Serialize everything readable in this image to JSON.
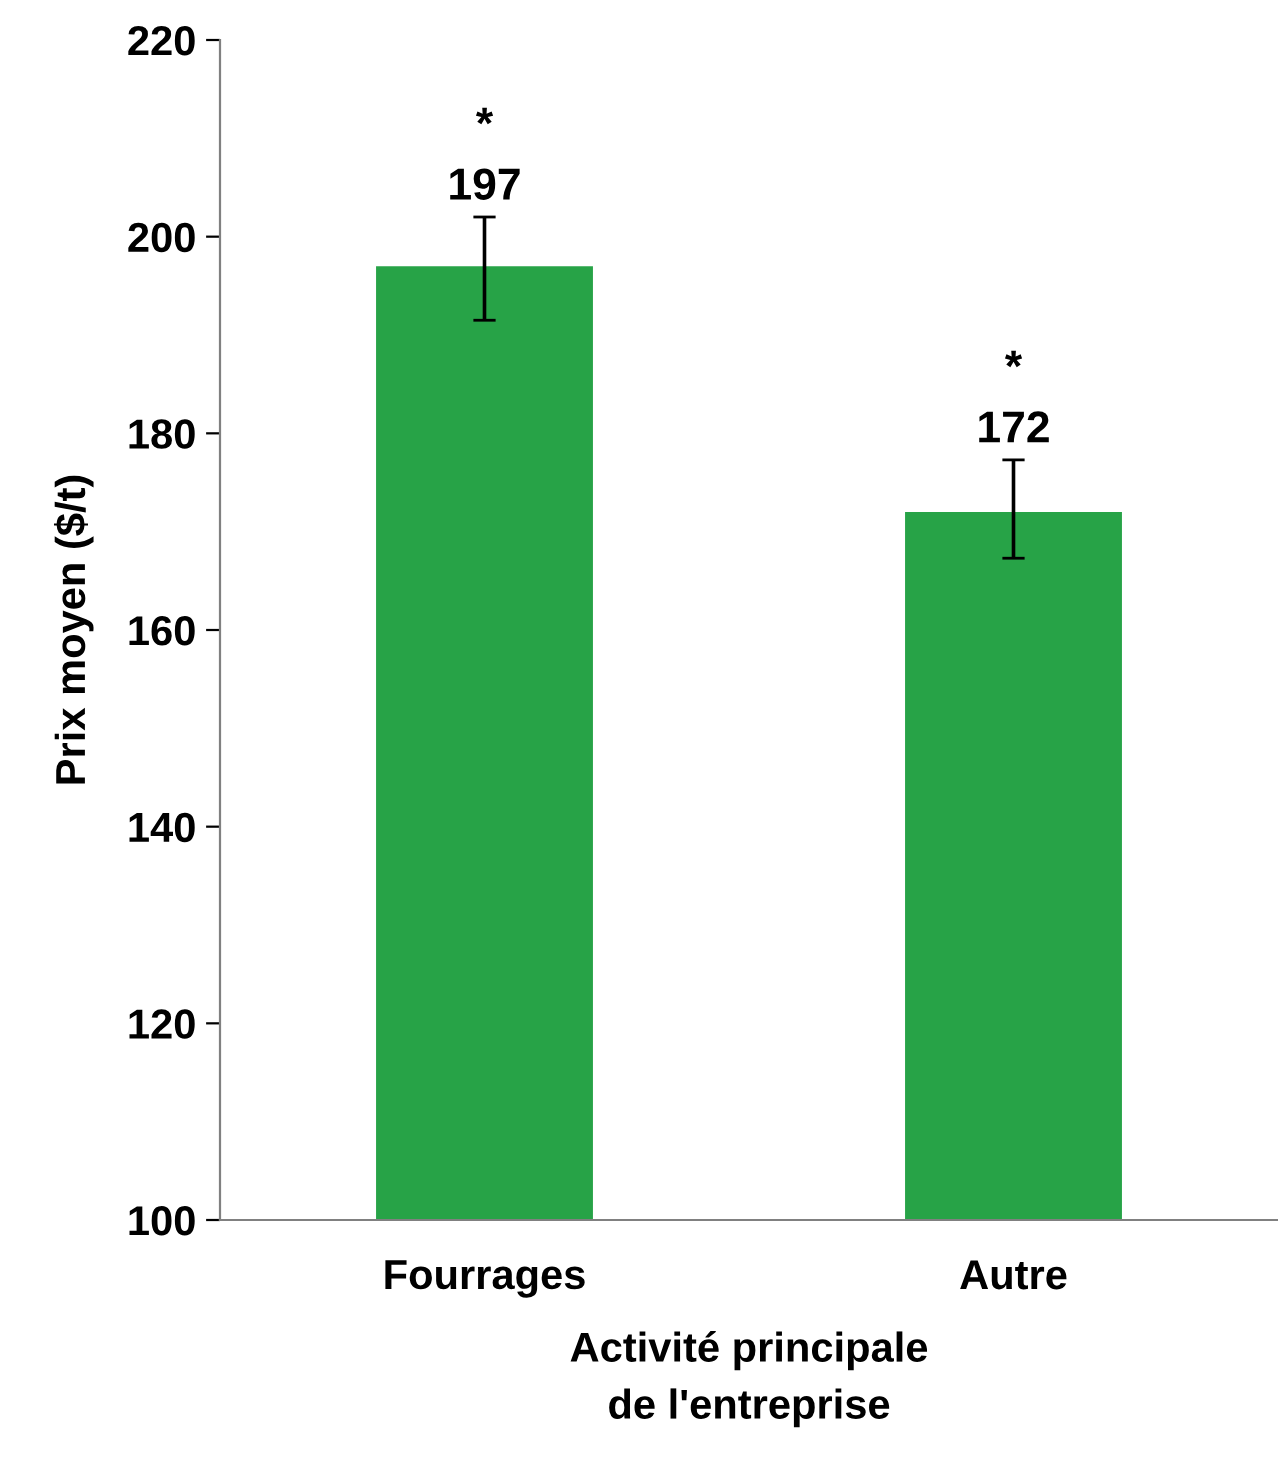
{
  "chart_data": {
    "type": "bar",
    "xlabel": "Activité principale\nde l'entreprise",
    "ylabel": "Prix moyen ($/t)",
    "categories": [
      "Fourrages",
      "Autre"
    ],
    "values": [
      197,
      172
    ],
    "color": "#27a347",
    "errors": [
      [
        191.5,
        202
      ],
      [
        167.3,
        177.3
      ]
    ],
    "data_labels": true,
    "annotations": [
      {
        "text": "*",
        "x": "Fourrages",
        "y": 202
      },
      {
        "text": "*",
        "x": "Autre",
        "y": 177.3
      }
    ],
    "ylim": [
      100,
      220
    ],
    "yticks": [
      100,
      120,
      140,
      160,
      180,
      200,
      220
    ],
    "grid": false,
    "legend": false
  }
}
